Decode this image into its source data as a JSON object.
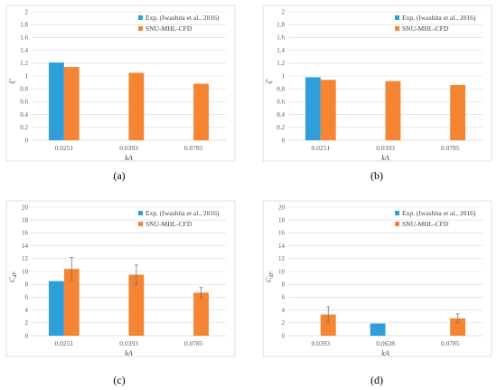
{
  "colors": {
    "exp": "#2e9fd8",
    "cfd": "#f58533",
    "grid": "#d9d9d9",
    "axis": "#bfbfbf",
    "frame": "#d9d9d9",
    "err": "#6a6a6a"
  },
  "chart_data": [
    {
      "id": "a",
      "type": "bar",
      "panel_label": "(a)",
      "xlabel": "kA",
      "ylabel": "ξ'",
      "ylim": [
        0,
        2
      ],
      "ytick_step": 0.2,
      "yticks": [
        "0",
        "0.2",
        "0.4",
        "0.6",
        "0.8",
        "1",
        "1.2",
        "1.4",
        "1.6",
        "1.8",
        "2"
      ],
      "categories": [
        "0.0251",
        "0.0393",
        "0.0785"
      ],
      "legend_position": "top-right",
      "series": [
        {
          "name": "Exp. (Iwashita et al., 2016)",
          "color_key": "exp",
          "values": [
            1.21,
            null,
            null
          ],
          "errors": [
            null,
            null,
            null
          ]
        },
        {
          "name": "SNU-MHL-CFD",
          "color_key": "cfd",
          "values": [
            1.14,
            1.05,
            0.88
          ],
          "errors": [
            null,
            null,
            null
          ]
        }
      ]
    },
    {
      "id": "b",
      "type": "bar",
      "panel_label": "(b)",
      "xlabel": "kA",
      "ylabel": "ζ'",
      "ylim": [
        0,
        2
      ],
      "ytick_step": 0.2,
      "yticks": [
        "0",
        "0.2",
        "0.4",
        "0.6",
        "0.8",
        "1",
        "1.2",
        "1.4",
        "1.6",
        "1.8",
        "2"
      ],
      "categories": [
        "0.0251",
        "0.0393",
        "0.0785"
      ],
      "legend_position": "top-right",
      "series": [
        {
          "name": "Exp. (Iwashita et al., 2016)",
          "color_key": "exp",
          "values": [
            0.98,
            null,
            null
          ],
          "errors": [
            null,
            null,
            null
          ]
        },
        {
          "name": "SNU-MHL-CFD",
          "color_key": "cfd",
          "values": [
            0.94,
            0.92,
            0.86
          ],
          "errors": [
            null,
            null,
            null
          ]
        }
      ]
    },
    {
      "id": "c",
      "type": "bar",
      "panel_label": "(c)",
      "xlabel": "kA",
      "ylabel": "C_dF",
      "ylim": [
        0,
        20
      ],
      "ytick_step": 2,
      "yticks": [
        "0",
        "2",
        "4",
        "6",
        "8",
        "10",
        "12",
        "14",
        "16",
        "18",
        "20"
      ],
      "categories": [
        "0.0251",
        "0.0393",
        "0.0785"
      ],
      "legend_position": "top-right",
      "series": [
        {
          "name": "Exp. (Iwashita et al., 2016)",
          "color_key": "exp",
          "values": [
            8.5,
            null,
            null
          ],
          "errors": [
            null,
            null,
            null
          ]
        },
        {
          "name": "SNU-MHL-CFD",
          "color_key": "cfd",
          "values": [
            10.4,
            9.5,
            6.7
          ],
          "errors": [
            1.8,
            1.5,
            0.8
          ]
        }
      ]
    },
    {
      "id": "d",
      "type": "bar",
      "panel_label": "(d)",
      "xlabel": "kA",
      "ylabel": "C_dF",
      "ylim": [
        0,
        20
      ],
      "ytick_step": 2,
      "yticks": [
        "0",
        "2",
        "4",
        "6",
        "8",
        "10",
        "12",
        "14",
        "16",
        "18",
        "20"
      ],
      "categories": [
        "0.0393",
        "0.0628",
        "0.0785"
      ],
      "legend_position": "top-right",
      "series": [
        {
          "name": "Exp. (Iwashita et al., 2016)",
          "color_key": "exp",
          "values": [
            null,
            1.9,
            null
          ],
          "errors": [
            null,
            null,
            null
          ]
        },
        {
          "name": "SNU-MHL-CFD",
          "color_key": "cfd",
          "values": [
            3.3,
            null,
            2.7
          ],
          "errors": [
            1.2,
            null,
            0.7
          ]
        }
      ]
    }
  ]
}
